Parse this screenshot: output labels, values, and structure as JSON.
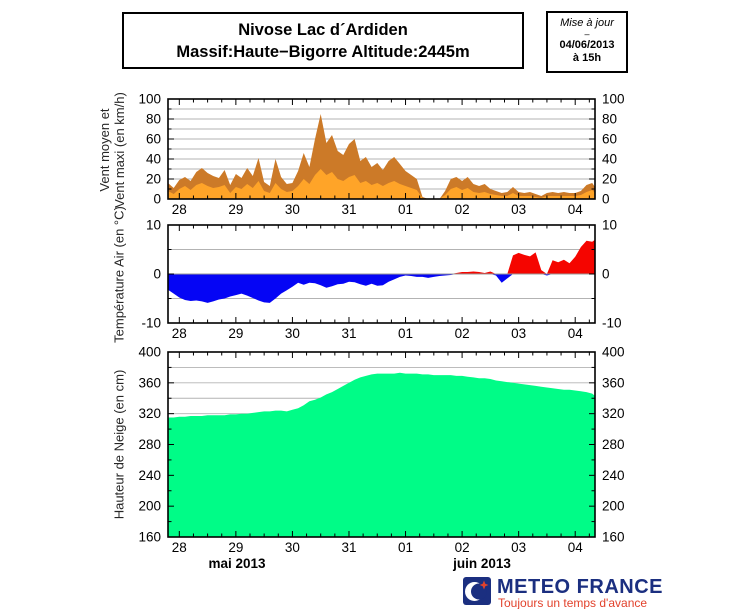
{
  "header": {
    "title_line1": "Nivose Lac d´Ardiden",
    "title_line2": "Massif:Haute−Bigorre Altitude:2445m",
    "update": {
      "label": "Mise à jour",
      "separator": "–",
      "date": "04/06/2013",
      "time": "à 15h"
    }
  },
  "axis": {
    "x_tick_labels": [
      "28",
      "29",
      "30",
      "31",
      "01",
      "02",
      "03",
      "04"
    ],
    "month_left": "mai 2013",
    "month_right": "juin 2013"
  },
  "footer": {
    "brand": "METEO FRANCE",
    "tagline": "Toujours un temps d'avance"
  },
  "colors": {
    "wind_max": "#CC7A28",
    "wind_mean": "#FFA428",
    "temp_above": "#F50500",
    "temp_below": "#0505F5",
    "snow": "#00FC87",
    "grid": "#b3b3b3",
    "axis": "#000000",
    "logo_blue": "#1B2F80",
    "logo_red": "#E2422C"
  },
  "chart_data": [
    {
      "type": "area",
      "ylabel": "Vent moyen et\nVent maxi (en km/h)",
      "ylim": [
        0,
        100
      ],
      "ytick_labels": [
        0,
        20,
        40,
        60,
        80,
        100
      ],
      "grid_step": 10,
      "xlim": [
        -0.2,
        7.35
      ],
      "x": [
        -0.2,
        -0.1,
        0,
        0.1,
        0.2,
        0.3,
        0.4,
        0.5,
        0.6,
        0.7,
        0.8,
        0.9,
        1,
        1.1,
        1.2,
        1.3,
        1.4,
        1.5,
        1.6,
        1.7,
        1.8,
        1.9,
        2,
        2.1,
        2.2,
        2.3,
        2.4,
        2.5,
        2.6,
        2.7,
        2.8,
        2.9,
        3,
        3.1,
        3.2,
        3.3,
        3.4,
        3.5,
        3.6,
        3.7,
        3.8,
        3.9,
        4,
        4.1,
        4.2,
        4.3,
        4.4,
        4.5,
        4.6,
        4.7,
        4.8,
        4.9,
        5,
        5.1,
        5.2,
        5.3,
        5.4,
        5.5,
        5.6,
        5.7,
        5.8,
        5.9,
        6,
        6.1,
        6.2,
        6.3,
        6.4,
        6.5,
        6.6,
        6.7,
        6.8,
        6.9,
        7,
        7.1,
        7.2,
        7.3,
        7.35
      ],
      "series": [
        {
          "name": "Vent maxi",
          "color": "#CC7A28",
          "values": [
            16,
            11,
            19,
            22,
            18,
            27,
            31,
            26,
            23,
            21,
            29,
            14,
            25,
            21,
            31,
            23,
            41,
            17,
            13,
            40,
            22,
            15,
            16,
            28,
            46,
            32,
            60,
            85,
            56,
            64,
            48,
            44,
            55,
            60,
            38,
            42,
            32,
            36,
            29,
            38,
            42,
            35,
            28,
            24,
            20,
            2,
            0,
            0,
            0,
            8,
            20,
            22,
            18,
            22,
            15,
            13,
            15,
            10,
            8,
            6,
            7,
            12,
            7,
            6,
            7,
            5,
            3,
            6,
            7,
            6,
            7,
            6,
            6,
            8,
            14,
            16,
            12
          ]
        },
        {
          "name": "Vent moyen",
          "color": "#FFA428",
          "values": [
            8,
            5,
            10,
            13,
            9,
            14,
            16,
            13,
            11,
            12,
            14,
            6,
            12,
            10,
            15,
            11,
            18,
            8,
            6,
            16,
            10,
            7,
            8,
            13,
            20,
            15,
            24,
            30,
            24,
            27,
            20,
            18,
            22,
            24,
            16,
            18,
            14,
            16,
            13,
            16,
            18,
            15,
            13,
            11,
            9,
            1,
            0,
            0,
            0,
            4,
            10,
            12,
            9,
            11,
            7,
            6,
            7,
            5,
            4,
            3,
            3,
            6,
            3,
            3,
            3,
            2,
            1,
            3,
            3,
            3,
            3,
            3,
            3,
            4,
            7,
            9,
            6
          ]
        }
      ]
    },
    {
      "type": "area",
      "split_at_zero": true,
      "ylabel": "Température Air (en °C)",
      "ylim": [
        -10,
        10
      ],
      "ytick_labels": [
        -10,
        0,
        10
      ],
      "grid_step": 5,
      "xlim": [
        -0.2,
        7.35
      ],
      "x": [
        -0.2,
        -0.1,
        0,
        0.1,
        0.2,
        0.3,
        0.4,
        0.5,
        0.6,
        0.7,
        0.8,
        0.9,
        1,
        1.1,
        1.2,
        1.3,
        1.4,
        1.5,
        1.6,
        1.7,
        1.8,
        1.9,
        2,
        2.1,
        2.2,
        2.3,
        2.4,
        2.5,
        2.6,
        2.7,
        2.8,
        2.9,
        3,
        3.1,
        3.2,
        3.3,
        3.4,
        3.5,
        3.6,
        3.7,
        3.8,
        3.9,
        4,
        4.1,
        4.2,
        4.3,
        4.4,
        4.5,
        4.6,
        4.7,
        4.8,
        4.9,
        5,
        5.1,
        5.2,
        5.3,
        5.4,
        5.5,
        5.6,
        5.7,
        5.8,
        5.9,
        6,
        6.1,
        6.2,
        6.3,
        6.4,
        6.5,
        6.6,
        6.7,
        6.8,
        6.9,
        7,
        7.1,
        7.2,
        7.3,
        7.35
      ],
      "series": [
        {
          "name": "Température Air",
          "color_above": "#F50500",
          "color_below": "#0505F5",
          "values": [
            -3.2,
            -4,
            -4.8,
            -5.3,
            -5.5,
            -5.4,
            -5.6,
            -5.9,
            -5.6,
            -5.2,
            -5,
            -4.6,
            -4.3,
            -4,
            -4.4,
            -4.9,
            -5.4,
            -5.8,
            -5.9,
            -5,
            -4,
            -3.3,
            -2.6,
            -1.8,
            -2.2,
            -1.8,
            -1.9,
            -2.3,
            -2.8,
            -2.5,
            -2.1,
            -2,
            -1.6,
            -1.7,
            -2.1,
            -2.4,
            -2,
            -2.4,
            -2.3,
            -1.6,
            -1.1,
            -0.6,
            -0.3,
            -0.4,
            -0.6,
            -0.6,
            -0.8,
            -0.6,
            -0.4,
            -0.3,
            -0.2,
            0.2,
            0.4,
            0.4,
            0.5,
            0.4,
            0.2,
            0.5,
            -0.3,
            -1.8,
            -0.9,
            3.8,
            4.3,
            3.9,
            3.6,
            4.4,
            0.8,
            -0.3,
            2.8,
            2.4,
            2.9,
            2.2,
            3.5,
            5.5,
            6.8,
            6.6,
            7
          ]
        }
      ]
    },
    {
      "type": "area",
      "ylabel": "Hauteur de Neige (en cm)",
      "ylim": [
        160,
        400
      ],
      "ytick_labels": [
        160,
        200,
        240,
        280,
        320,
        360,
        400
      ],
      "grid_step": 20,
      "xlim": [
        -0.2,
        7.35
      ],
      "x": [
        -0.2,
        -0.1,
        0,
        0.1,
        0.2,
        0.3,
        0.4,
        0.5,
        0.6,
        0.7,
        0.8,
        0.9,
        1,
        1.1,
        1.2,
        1.3,
        1.4,
        1.5,
        1.6,
        1.7,
        1.8,
        1.9,
        2,
        2.1,
        2.2,
        2.3,
        2.4,
        2.5,
        2.6,
        2.7,
        2.8,
        2.9,
        3,
        3.1,
        3.2,
        3.3,
        3.4,
        3.5,
        3.6,
        3.7,
        3.8,
        3.9,
        4,
        4.1,
        4.2,
        4.3,
        4.4,
        4.5,
        4.6,
        4.7,
        4.8,
        4.9,
        5,
        5.1,
        5.2,
        5.3,
        5.4,
        5.5,
        5.6,
        5.7,
        5.8,
        5.9,
        6,
        6.1,
        6.2,
        6.3,
        6.4,
        6.5,
        6.6,
        6.7,
        6.8,
        6.9,
        7,
        7.1,
        7.2,
        7.3,
        7.35
      ],
      "series": [
        {
          "name": "Hauteur de Neige",
          "color": "#00FC87",
          "values": [
            315,
            315,
            316,
            316,
            317,
            317,
            317,
            318,
            318,
            318,
            318,
            319,
            319,
            320,
            320,
            321,
            322,
            323,
            323,
            324,
            324,
            323,
            325,
            327,
            331,
            336,
            338,
            341,
            345,
            348,
            352,
            356,
            360,
            364,
            367,
            369,
            371,
            372,
            372,
            372,
            372,
            373,
            372,
            372,
            372,
            371,
            371,
            370,
            370,
            370,
            370,
            369,
            369,
            368,
            367,
            366,
            366,
            365,
            363,
            362,
            361,
            360,
            359,
            358,
            357,
            356,
            355,
            354,
            353,
            352,
            351,
            351,
            350,
            349,
            348,
            346,
            343
          ]
        }
      ]
    }
  ]
}
